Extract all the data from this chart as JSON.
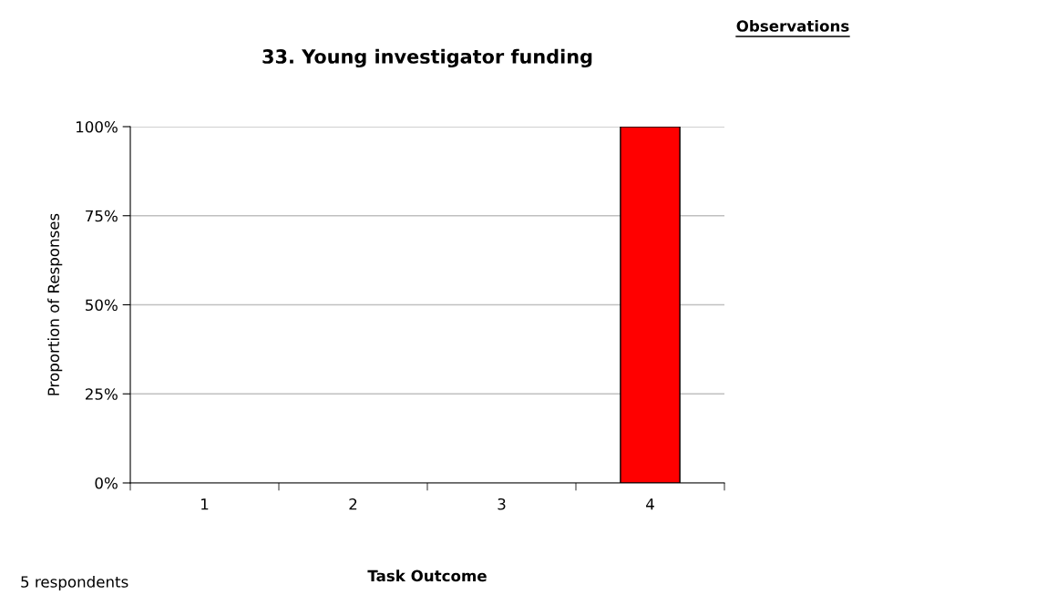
{
  "chart_data": {
    "type": "bar",
    "title": "33. Young investigator funding",
    "xlabel": "Task Outcome",
    "ylabel": "Proportion of Responses",
    "categories": [
      "1",
      "2",
      "3",
      "4"
    ],
    "values": [
      0,
      0,
      0,
      100
    ],
    "color": "#ff0000",
    "ylim": [
      0,
      100
    ],
    "yticks": [
      {
        "value": 0,
        "label": "0%"
      },
      {
        "value": 25,
        "label": "25%"
      },
      {
        "value": 50,
        "label": "50%"
      },
      {
        "value": 75,
        "label": "75%"
      },
      {
        "value": 100,
        "label": "100%"
      }
    ],
    "grid": "y",
    "legend": false,
    "annotations": [
      "Observations",
      "5 respondents"
    ]
  }
}
